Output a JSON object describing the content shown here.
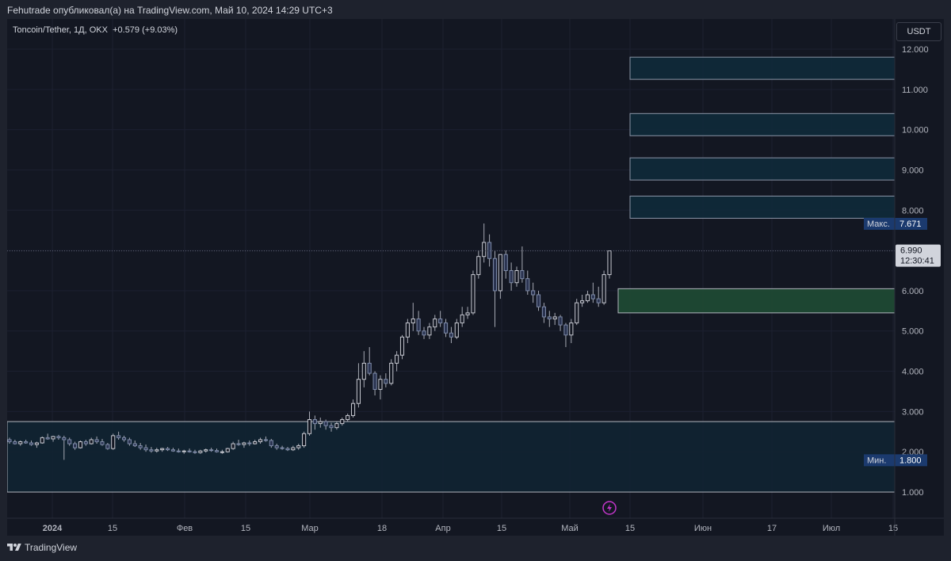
{
  "header": {
    "published_text": "Fehutrade опубликовал(а) на TradingView.com, Май 10, 2024 14:29 UTC+3"
  },
  "symbol": {
    "name": "Toncoin/Tether, 1Д, OKX",
    "change": "+0.579 (+9.03%)",
    "currency": "USDT"
  },
  "footer": {
    "brand": "TradingView"
  },
  "colors": {
    "background": "#131722",
    "frame": "#1e222d",
    "candle": "#b2b5be",
    "zone_fill": "#0f2a3a",
    "green_zone": "#1f4b34",
    "label_blue": "#1b3a6e"
  },
  "chart_data": {
    "type": "candlestick",
    "y_axis": {
      "min": 1.0,
      "max": 12.0,
      "ticks": [
        "12.000",
        "11.000",
        "10.000",
        "9.000",
        "8.000",
        "6.000",
        "5.000",
        "4.000",
        "3.000",
        "2.000",
        "1.000"
      ]
    },
    "x_axis": {
      "ticks": [
        "2024",
        "15",
        "Фев",
        "15",
        "Мар",
        "18",
        "Апр",
        "15",
        "Май",
        "15",
        "Июн",
        "17",
        "Июл",
        "15"
      ]
    },
    "last_price": "6.990",
    "countdown": "12:30:41",
    "max_label": "Макс.",
    "max_value": "7.671",
    "min_label": "Мин.",
    "min_value": "1.800",
    "zones": [
      {
        "kind": "resistance",
        "low": 11.25,
        "high": 11.8
      },
      {
        "kind": "resistance",
        "low": 9.85,
        "high": 10.4
      },
      {
        "kind": "resistance",
        "low": 8.75,
        "high": 9.3
      },
      {
        "kind": "resistance",
        "low": 7.8,
        "high": 8.35
      },
      {
        "kind": "support-green",
        "low": 5.45,
        "high": 6.05
      },
      {
        "kind": "accumulation",
        "low": 1.0,
        "high": 2.75
      }
    ],
    "candles_ohlc": [
      [
        2.3,
        2.35,
        2.2,
        2.25
      ],
      [
        2.25,
        2.3,
        2.18,
        2.2
      ],
      [
        2.2,
        2.28,
        2.15,
        2.25
      ],
      [
        2.25,
        2.3,
        2.2,
        2.22
      ],
      [
        2.22,
        2.28,
        2.15,
        2.18
      ],
      [
        2.18,
        2.25,
        2.1,
        2.22
      ],
      [
        2.22,
        2.38,
        2.2,
        2.35
      ],
      [
        2.35,
        2.45,
        2.3,
        2.32
      ],
      [
        2.32,
        2.4,
        2.25,
        2.38
      ],
      [
        2.38,
        2.42,
        2.3,
        2.35
      ],
      [
        2.35,
        2.4,
        1.8,
        2.3
      ],
      [
        2.3,
        2.35,
        2.15,
        2.2
      ],
      [
        2.2,
        2.25,
        2.05,
        2.1
      ],
      [
        2.1,
        2.28,
        2.08,
        2.25
      ],
      [
        2.25,
        2.3,
        2.15,
        2.2
      ],
      [
        2.2,
        2.35,
        2.18,
        2.3
      ],
      [
        2.3,
        2.38,
        2.2,
        2.25
      ],
      [
        2.25,
        2.32,
        2.15,
        2.18
      ],
      [
        2.18,
        2.22,
        2.05,
        2.08
      ],
      [
        2.08,
        2.45,
        2.05,
        2.4
      ],
      [
        2.4,
        2.5,
        2.3,
        2.35
      ],
      [
        2.35,
        2.4,
        2.25,
        2.3
      ],
      [
        2.3,
        2.35,
        2.15,
        2.2
      ],
      [
        2.2,
        2.28,
        2.12,
        2.15
      ],
      [
        2.15,
        2.22,
        2.05,
        2.1
      ],
      [
        2.1,
        2.18,
        2.0,
        2.05
      ],
      [
        2.05,
        2.12,
        1.98,
        2.02
      ],
      [
        2.02,
        2.1,
        1.98,
        2.05
      ],
      [
        2.05,
        2.1,
        2.0,
        2.08
      ],
      [
        2.08,
        2.12,
        2.02,
        2.05
      ],
      [
        2.05,
        2.1,
        2.0,
        2.02
      ],
      [
        2.02,
        2.08,
        1.98,
        2.0
      ],
      [
        2.0,
        2.05,
        1.95,
        2.02
      ],
      [
        2.02,
        2.08,
        1.98,
        2.0
      ],
      [
        2.0,
        2.05,
        1.95,
        1.98
      ],
      [
        1.98,
        2.05,
        1.95,
        2.02
      ],
      [
        2.02,
        2.08,
        1.98,
        2.05
      ],
      [
        2.05,
        2.1,
        2.0,
        2.03
      ],
      [
        2.03,
        2.08,
        1.98,
        2.0
      ],
      [
        2.0,
        2.05,
        1.95,
        2.0
      ],
      [
        2.0,
        2.1,
        1.98,
        2.08
      ],
      [
        2.08,
        2.25,
        2.05,
        2.2
      ],
      [
        2.2,
        2.3,
        2.15,
        2.18
      ],
      [
        2.18,
        2.25,
        2.1,
        2.22
      ],
      [
        2.22,
        2.28,
        2.15,
        2.2
      ],
      [
        2.2,
        2.3,
        2.18,
        2.25
      ],
      [
        2.25,
        2.35,
        2.2,
        2.3
      ],
      [
        2.3,
        2.38,
        2.25,
        2.28
      ],
      [
        2.28,
        2.32,
        2.1,
        2.15
      ],
      [
        2.15,
        2.2,
        2.05,
        2.1
      ],
      [
        2.1,
        2.15,
        2.05,
        2.08
      ],
      [
        2.08,
        2.12,
        2.02,
        2.05
      ],
      [
        2.05,
        2.15,
        2.02,
        2.1
      ],
      [
        2.1,
        2.2,
        2.05,
        2.15
      ],
      [
        2.15,
        2.5,
        2.1,
        2.45
      ],
      [
        2.45,
        3.0,
        2.4,
        2.8
      ],
      [
        2.8,
        2.9,
        2.55,
        2.7
      ],
      [
        2.7,
        2.85,
        2.6,
        2.75
      ],
      [
        2.75,
        2.8,
        2.55,
        2.65
      ],
      [
        2.65,
        2.72,
        2.5,
        2.6
      ],
      [
        2.6,
        2.75,
        2.55,
        2.7
      ],
      [
        2.7,
        2.85,
        2.65,
        2.8
      ],
      [
        2.8,
        2.95,
        2.75,
        2.9
      ],
      [
        2.9,
        3.3,
        2.85,
        3.2
      ],
      [
        3.2,
        4.2,
        3.1,
        3.8
      ],
      [
        3.8,
        4.5,
        3.6,
        4.2
      ],
      [
        4.2,
        4.6,
        3.9,
        3.95
      ],
      [
        3.95,
        4.0,
        3.4,
        3.55
      ],
      [
        3.55,
        3.9,
        3.3,
        3.8
      ],
      [
        3.8,
        3.95,
        3.6,
        3.7
      ],
      [
        3.7,
        4.3,
        3.65,
        4.2
      ],
      [
        4.2,
        4.5,
        4.0,
        4.4
      ],
      [
        4.4,
        4.9,
        4.3,
        4.85
      ],
      [
        4.85,
        5.3,
        4.7,
        5.2
      ],
      [
        5.2,
        5.7,
        5.0,
        5.3
      ],
      [
        5.3,
        5.5,
        4.9,
        5.0
      ],
      [
        5.0,
        5.1,
        4.8,
        4.9
      ],
      [
        4.9,
        5.2,
        4.8,
        5.1
      ],
      [
        5.1,
        5.4,
        5.0,
        5.3
      ],
      [
        5.3,
        5.5,
        5.1,
        5.2
      ],
      [
        5.2,
        5.3,
        4.85,
        4.95
      ],
      [
        4.95,
        5.1,
        4.7,
        4.85
      ],
      [
        4.85,
        5.3,
        4.8,
        5.2
      ],
      [
        5.2,
        5.6,
        5.1,
        5.4
      ],
      [
        5.4,
        5.6,
        5.3,
        5.45
      ],
      [
        5.45,
        6.5,
        5.4,
        6.4
      ],
      [
        6.4,
        7.0,
        6.3,
        6.85
      ],
      [
        6.85,
        7.67,
        6.7,
        7.2
      ],
      [
        7.2,
        7.4,
        6.6,
        6.8
      ],
      [
        6.8,
        7.0,
        5.1,
        6.0
      ],
      [
        6.0,
        6.9,
        5.8,
        6.9
      ],
      [
        6.9,
        7.0,
        6.3,
        6.5
      ],
      [
        6.5,
        6.7,
        6.0,
        6.2
      ],
      [
        6.2,
        6.6,
        6.1,
        6.5
      ],
      [
        6.5,
        7.1,
        6.2,
        6.3
      ],
      [
        6.3,
        6.5,
        5.9,
        6.0
      ],
      [
        6.0,
        6.2,
        5.7,
        5.9
      ],
      [
        5.9,
        6.0,
        5.5,
        5.6
      ],
      [
        5.6,
        5.7,
        5.2,
        5.35
      ],
      [
        5.35,
        5.5,
        5.1,
        5.3
      ],
      [
        5.3,
        5.45,
        5.15,
        5.35
      ],
      [
        5.35,
        5.4,
        5.0,
        5.15
      ],
      [
        5.15,
        5.2,
        4.6,
        4.9
      ],
      [
        4.9,
        5.3,
        4.7,
        5.2
      ],
      [
        5.2,
        5.8,
        5.15,
        5.7
      ],
      [
        5.7,
        5.9,
        5.6,
        5.75
      ],
      [
        5.75,
        6.0,
        5.7,
        5.9
      ],
      [
        5.9,
        6.2,
        5.7,
        5.8
      ],
      [
        5.8,
        6.1,
        5.6,
        5.7
      ],
      [
        5.7,
        6.5,
        5.65,
        6.4
      ],
      [
        6.4,
        7.0,
        6.3,
        6.99
      ]
    ]
  }
}
